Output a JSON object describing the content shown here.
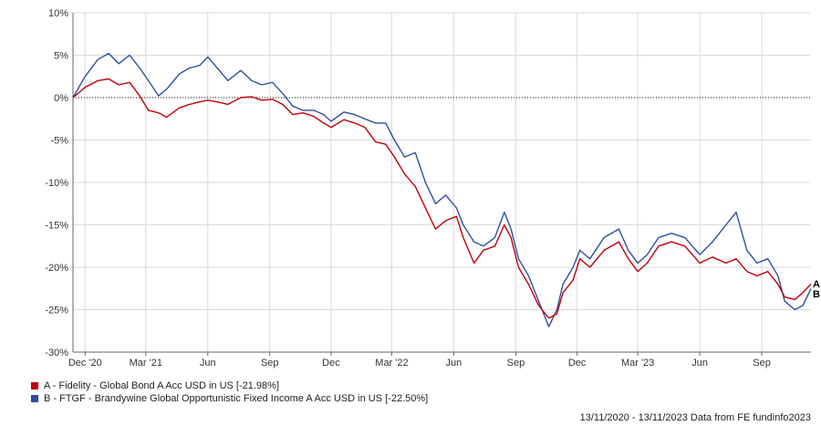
{
  "chart_data": {
    "type": "line",
    "title": "",
    "xlabel": "",
    "ylabel": "",
    "ylim": [
      -30,
      10
    ],
    "y_ticks": [
      10,
      5,
      0,
      -5,
      -10,
      -15,
      -20,
      -25,
      -30
    ],
    "y_tick_labels": [
      "10%",
      "5%",
      "0%",
      "-5%",
      "-10%",
      "-15%",
      "-20%",
      "-25%",
      "-30%"
    ],
    "x_range": [
      "2020-11-13",
      "2023-11-13"
    ],
    "x_ticks": [
      "2020-12-01",
      "2021-03-01",
      "2021-06-01",
      "2021-09-01",
      "2021-12-01",
      "2022-03-01",
      "2022-06-01",
      "2022-09-01",
      "2022-12-01",
      "2023-03-01",
      "2023-06-01",
      "2023-09-01"
    ],
    "x_tick_labels": [
      "Dec '20",
      "Mar '21",
      "Jun",
      "Sep",
      "Dec",
      "Mar '22",
      "Jun",
      "Sep",
      "Dec",
      "Mar '23",
      "Jun",
      "Sep"
    ],
    "grid": true,
    "zero_line": "dotted",
    "series": [
      {
        "name": "A - Fidelity - Global Bond A Acc USD in US [-21.98%]",
        "end_label": "A",
        "color": "#c0000a",
        "points": [
          [
            "2020-11-13",
            0.0
          ],
          [
            "2020-12-01",
            1.2
          ],
          [
            "2020-12-20",
            2.0
          ],
          [
            "2021-01-05",
            2.2
          ],
          [
            "2021-01-20",
            1.5
          ],
          [
            "2021-02-05",
            1.8
          ],
          [
            "2021-02-20",
            0.2
          ],
          [
            "2021-03-05",
            -1.5
          ],
          [
            "2021-03-20",
            -1.8
          ],
          [
            "2021-04-01",
            -2.3
          ],
          [
            "2021-04-20",
            -1.2
          ],
          [
            "2021-05-05",
            -0.8
          ],
          [
            "2021-05-20",
            -0.5
          ],
          [
            "2021-06-01",
            -0.3
          ],
          [
            "2021-06-15",
            -0.5
          ],
          [
            "2021-07-01",
            -0.8
          ],
          [
            "2021-07-20",
            0.0
          ],
          [
            "2021-08-05",
            0.1
          ],
          [
            "2021-08-20",
            -0.3
          ],
          [
            "2021-09-05",
            -0.2
          ],
          [
            "2021-09-20",
            -0.8
          ],
          [
            "2021-10-05",
            -2.0
          ],
          [
            "2021-10-20",
            -1.8
          ],
          [
            "2021-11-05",
            -2.2
          ],
          [
            "2021-11-20",
            -3.0
          ],
          [
            "2021-12-01",
            -3.5
          ],
          [
            "2021-12-20",
            -2.6
          ],
          [
            "2022-01-05",
            -3.0
          ],
          [
            "2022-01-20",
            -3.5
          ],
          [
            "2022-02-05",
            -5.2
          ],
          [
            "2022-02-20",
            -5.5
          ],
          [
            "2022-03-05",
            -7.0
          ],
          [
            "2022-03-20",
            -9.0
          ],
          [
            "2022-04-05",
            -10.5
          ],
          [
            "2022-04-20",
            -13.0
          ],
          [
            "2022-05-05",
            -15.5
          ],
          [
            "2022-05-20",
            -14.5
          ],
          [
            "2022-06-05",
            -14.0
          ],
          [
            "2022-06-15",
            -16.5
          ],
          [
            "2022-07-01",
            -19.5
          ],
          [
            "2022-07-15",
            -18.0
          ],
          [
            "2022-08-01",
            -17.5
          ],
          [
            "2022-08-15",
            -15.0
          ],
          [
            "2022-08-25",
            -16.5
          ],
          [
            "2022-09-05",
            -20.0
          ],
          [
            "2022-09-20",
            -22.0
          ],
          [
            "2022-10-05",
            -24.5
          ],
          [
            "2022-10-20",
            -26.0
          ],
          [
            "2022-11-01",
            -25.5
          ],
          [
            "2022-11-10",
            -23.0
          ],
          [
            "2022-11-25",
            -21.5
          ],
          [
            "2022-12-05",
            -19.0
          ],
          [
            "2022-12-20",
            -20.0
          ],
          [
            "2023-01-10",
            -18.0
          ],
          [
            "2023-02-01",
            -17.0
          ],
          [
            "2023-02-15",
            -19.0
          ],
          [
            "2023-03-01",
            -20.5
          ],
          [
            "2023-03-15",
            -19.5
          ],
          [
            "2023-04-01",
            -17.5
          ],
          [
            "2023-04-20",
            -17.0
          ],
          [
            "2023-05-10",
            -17.5
          ],
          [
            "2023-06-01",
            -19.5
          ],
          [
            "2023-06-20",
            -18.8
          ],
          [
            "2023-07-10",
            -19.5
          ],
          [
            "2023-07-25",
            -19.0
          ],
          [
            "2023-08-10",
            -20.5
          ],
          [
            "2023-08-25",
            -21.0
          ],
          [
            "2023-09-10",
            -20.5
          ],
          [
            "2023-09-25",
            -22.0
          ],
          [
            "2023-10-05",
            -23.5
          ],
          [
            "2023-10-20",
            -23.8
          ],
          [
            "2023-11-01",
            -23.0
          ],
          [
            "2023-11-13",
            -21.98
          ]
        ]
      },
      {
        "name": "B - FTGF - Brandywine Global Opportunistic Fixed Income A Acc USD in US [-22.50%]",
        "end_label": "B",
        "color": "#2e4fa0",
        "points": [
          [
            "2020-11-13",
            0.0
          ],
          [
            "2020-12-01",
            2.5
          ],
          [
            "2020-12-20",
            4.5
          ],
          [
            "2021-01-05",
            5.2
          ],
          [
            "2021-01-20",
            4.0
          ],
          [
            "2021-02-05",
            5.0
          ],
          [
            "2021-02-20",
            3.5
          ],
          [
            "2021-03-05",
            2.0
          ],
          [
            "2021-03-20",
            0.2
          ],
          [
            "2021-04-01",
            1.0
          ],
          [
            "2021-04-20",
            2.8
          ],
          [
            "2021-05-05",
            3.5
          ],
          [
            "2021-05-20",
            3.8
          ],
          [
            "2021-06-01",
            4.8
          ],
          [
            "2021-06-15",
            3.5
          ],
          [
            "2021-07-01",
            2.0
          ],
          [
            "2021-07-20",
            3.2
          ],
          [
            "2021-08-05",
            2.0
          ],
          [
            "2021-08-20",
            1.5
          ],
          [
            "2021-09-05",
            1.8
          ],
          [
            "2021-09-20",
            0.5
          ],
          [
            "2021-10-05",
            -1.0
          ],
          [
            "2021-10-20",
            -1.5
          ],
          [
            "2021-11-05",
            -1.5
          ],
          [
            "2021-11-20",
            -2.0
          ],
          [
            "2021-12-01",
            -2.8
          ],
          [
            "2021-12-20",
            -1.7
          ],
          [
            "2022-01-05",
            -2.0
          ],
          [
            "2022-01-20",
            -2.5
          ],
          [
            "2022-02-05",
            -3.0
          ],
          [
            "2022-02-20",
            -3.0
          ],
          [
            "2022-03-05",
            -5.0
          ],
          [
            "2022-03-20",
            -7.0
          ],
          [
            "2022-04-05",
            -6.5
          ],
          [
            "2022-04-20",
            -10.0
          ],
          [
            "2022-05-05",
            -12.5
          ],
          [
            "2022-05-20",
            -11.5
          ],
          [
            "2022-06-05",
            -13.0
          ],
          [
            "2022-06-15",
            -15.0
          ],
          [
            "2022-07-01",
            -17.0
          ],
          [
            "2022-07-15",
            -17.5
          ],
          [
            "2022-08-01",
            -16.5
          ],
          [
            "2022-08-15",
            -13.5
          ],
          [
            "2022-08-25",
            -15.5
          ],
          [
            "2022-09-05",
            -19.0
          ],
          [
            "2022-09-20",
            -21.0
          ],
          [
            "2022-10-05",
            -24.0
          ],
          [
            "2022-10-20",
            -27.0
          ],
          [
            "2022-11-01",
            -25.0
          ],
          [
            "2022-11-10",
            -22.0
          ],
          [
            "2022-11-25",
            -20.0
          ],
          [
            "2022-12-05",
            -18.0
          ],
          [
            "2022-12-20",
            -19.0
          ],
          [
            "2023-01-10",
            -16.5
          ],
          [
            "2023-02-01",
            -15.5
          ],
          [
            "2023-02-15",
            -18.0
          ],
          [
            "2023-03-01",
            -19.5
          ],
          [
            "2023-03-15",
            -18.5
          ],
          [
            "2023-04-01",
            -16.5
          ],
          [
            "2023-04-20",
            -16.0
          ],
          [
            "2023-05-10",
            -16.5
          ],
          [
            "2023-06-01",
            -18.5
          ],
          [
            "2023-06-20",
            -17.0
          ],
          [
            "2023-07-10",
            -15.0
          ],
          [
            "2023-07-25",
            -13.5
          ],
          [
            "2023-08-10",
            -18.0
          ],
          [
            "2023-08-25",
            -19.5
          ],
          [
            "2023-09-10",
            -19.0
          ],
          [
            "2023-09-25",
            -21.0
          ],
          [
            "2023-10-05",
            -24.0
          ],
          [
            "2023-10-20",
            -25.0
          ],
          [
            "2023-11-01",
            -24.5
          ],
          [
            "2023-11-13",
            -22.5
          ]
        ]
      }
    ]
  },
  "footer_text": "13/11/2020 - 13/11/2023 Data from FE fundinfo2023"
}
